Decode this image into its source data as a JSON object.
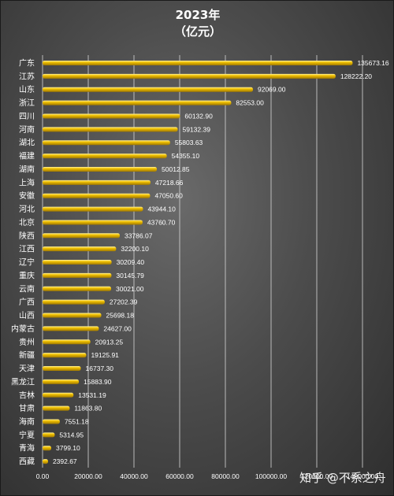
{
  "chart_data": {
    "type": "bar",
    "orientation": "horizontal",
    "title": [
      "2023年",
      "（亿元）"
    ],
    "categories": [
      "广东",
      "江苏",
      "山东",
      "浙江",
      "四川",
      "河南",
      "湖北",
      "福建",
      "湖南",
      "上海",
      "安徽",
      "河北",
      "北京",
      "陕西",
      "江西",
      "辽宁",
      "重庆",
      "云南",
      "广西",
      "山西",
      "内蒙古",
      "贵州",
      "新疆",
      "天津",
      "黑龙江",
      "吉林",
      "甘肃",
      "海南",
      "宁夏",
      "青海",
      "西藏"
    ],
    "values": [
      135673.16,
      128222.2,
      92069.0,
      82553.0,
      60132.9,
      59132.39,
      55803.63,
      54355.1,
      50012.85,
      47218.66,
      47050.6,
      43944.1,
      43760.7,
      33786.07,
      32200.1,
      30209.4,
      30145.79,
      30021.0,
      27202.39,
      25698.18,
      24627.0,
      20913.25,
      19125.91,
      16737.3,
      15883.9,
      13531.19,
      11863.8,
      7551.18,
      5314.95,
      3799.1,
      2392.67
    ],
    "value_labels": [
      "135673.16",
      "128222.20",
      "92069.00",
      "82553.00",
      "60132.90",
      "59132.39",
      "55803.63",
      "54355.10",
      "50012.85",
      "47218.66",
      "47050.60",
      "43944.10",
      "43760.70",
      "33786.07",
      "32200.10",
      "30209.40",
      "30145.79",
      "30021.00",
      "27202.39",
      "25698.18",
      "24627.00",
      "20913.25",
      "19125.91",
      "16737.30",
      "15883.90",
      "13531.19",
      "11863.80",
      "7551.18",
      "5314.95",
      "3799.10",
      "2392.67"
    ],
    "x_ticks": [
      0,
      20000,
      40000,
      60000,
      80000,
      100000,
      120000,
      140000
    ],
    "x_tick_labels": [
      "0.00",
      "20000.00",
      "40000.00",
      "60000.00",
      "80000.00",
      "100000.00",
      "120000.00",
      "140000.00"
    ],
    "xlim": [
      0,
      140000
    ],
    "grid": true,
    "bar_color": "#f2c200",
    "bar_highlight": "#fff2a0",
    "bar_shadow": "#a07800"
  },
  "watermark": "知乎 @不系之舟"
}
